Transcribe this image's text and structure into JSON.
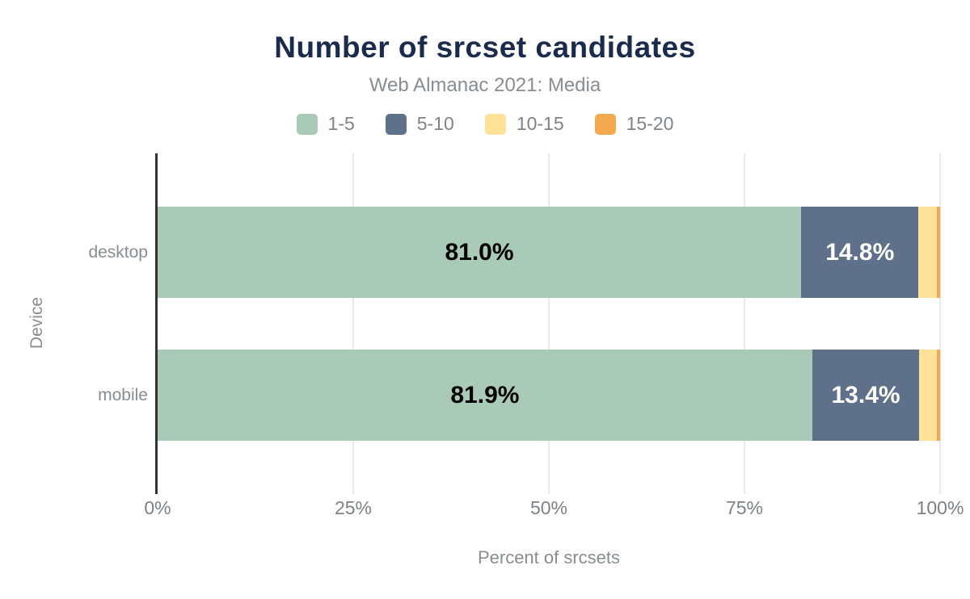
{
  "chart_data": {
    "type": "bar",
    "stacked": true,
    "orientation": "horizontal",
    "title": "Number of srcset candidates",
    "subtitle": "Web Almanac 2021: Media",
    "xlabel": "Percent of srcsets",
    "ylabel": "Device",
    "categories": [
      "desktop",
      "mobile"
    ],
    "series": [
      {
        "name": "1-5",
        "color": "#a9cab6",
        "label_color": "#000000",
        "values": [
          81.0,
          81.9
        ],
        "labels": [
          "81.0%",
          "81.9%"
        ]
      },
      {
        "name": "5-10",
        "color": "#5e708a",
        "label_color": "#ffffff",
        "values": [
          14.8,
          13.4
        ],
        "labels": [
          "14.8%",
          "13.4%"
        ]
      },
      {
        "name": "10-15",
        "color": "#fde298",
        "label_color": "#000000",
        "values": [
          2.3,
          2.2
        ],
        "labels": [
          "",
          ""
        ]
      },
      {
        "name": "15-20",
        "color": "#f4a94f",
        "label_color": "#000000",
        "values": [
          0.4,
          0.4
        ],
        "labels": [
          "",
          ""
        ]
      }
    ],
    "x_ticks": [
      "0%",
      "25%",
      "50%",
      "75%",
      "100%"
    ],
    "xlim": [
      0,
      100
    ],
    "grid": true,
    "legend_position": "top",
    "colors": {
      "title": "#1b2b4d",
      "subtitle_text": "#888d91",
      "axis_line": "#333333",
      "gridline": "#e9e9e9",
      "tick_text": "#7d8286"
    }
  }
}
